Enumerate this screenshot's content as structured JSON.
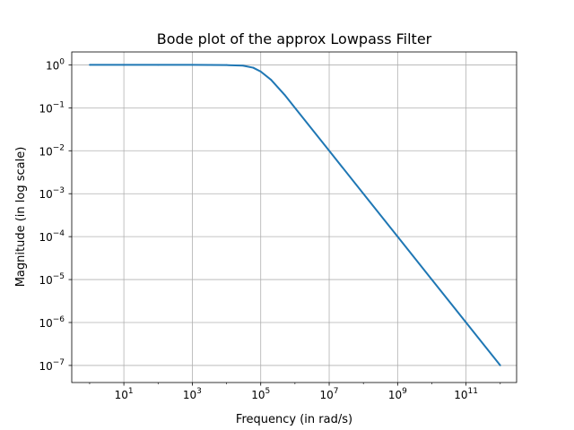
{
  "chart_data": {
    "type": "line",
    "title": "Bode plot of the approx Lowpass Filter",
    "xlabel": "Frequency (in rad/s)",
    "ylabel": "Magnitude (in log scale)",
    "xscale": "log",
    "yscale": "log",
    "xlim": [
      0.3,
      3000000000000.0
    ],
    "ylim": [
      4e-08,
      2.0
    ],
    "grid": true,
    "xticks": [
      {
        "value": 10,
        "base": "10",
        "exp": "1"
      },
      {
        "value": 1000,
        "base": "10",
        "exp": "3"
      },
      {
        "value": 100000,
        "base": "10",
        "exp": "5"
      },
      {
        "value": 10000000,
        "base": "10",
        "exp": "7"
      },
      {
        "value": 1000000000,
        "base": "10",
        "exp": "9"
      },
      {
        "value": 100000000000,
        "base": "10",
        "exp": "11"
      }
    ],
    "yticks": [
      {
        "value": 1,
        "base": "10",
        "exp": "0"
      },
      {
        "value": 0.1,
        "base": "10",
        "exp": "−1"
      },
      {
        "value": 0.01,
        "base": "10",
        "exp": "−2"
      },
      {
        "value": 0.001,
        "base": "10",
        "exp": "−3"
      },
      {
        "value": 0.0001,
        "base": "10",
        "exp": "−4"
      },
      {
        "value": 1e-05,
        "base": "10",
        "exp": "−5"
      },
      {
        "value": 1e-06,
        "base": "10",
        "exp": "−6"
      },
      {
        "value": 1e-07,
        "base": "10",
        "exp": "−7"
      }
    ],
    "series": [
      {
        "color": "#1f77b4",
        "x": [
          1,
          10,
          100,
          1000,
          10000,
          30000,
          60000,
          100000,
          200000,
          500000,
          1000000,
          10000000,
          100000000,
          1000000000,
          10000000000,
          100000000000,
          1000000000000
        ],
        "y": [
          1,
          1,
          1,
          1,
          0.99,
          0.96,
          0.86,
          0.7,
          0.45,
          0.2,
          0.1,
          0.01,
          0.001,
          0.0001,
          1e-05,
          1e-06,
          1e-07
        ]
      }
    ]
  }
}
